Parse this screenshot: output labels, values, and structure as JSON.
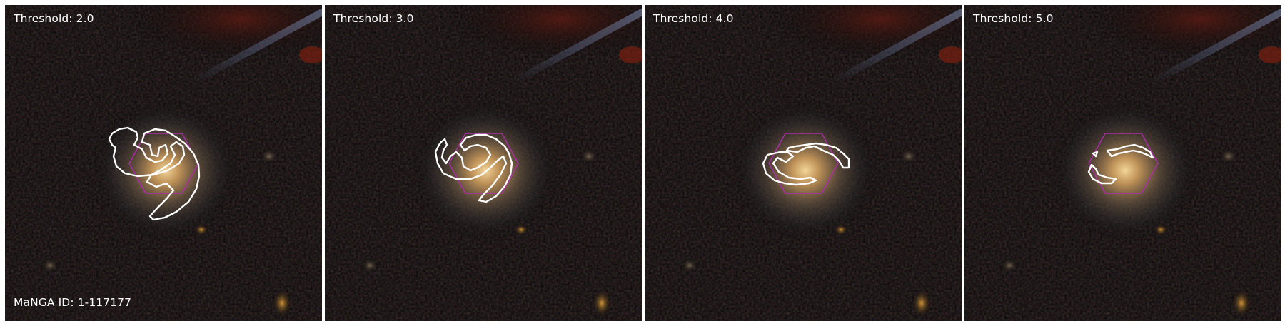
{
  "figure": {
    "panels": [
      {
        "threshold_label": "Threshold: 2.0",
        "threshold": 2.0
      },
      {
        "threshold_label": "Threshold: 3.0",
        "threshold": 3.0
      },
      {
        "threshold_label": "Threshold: 4.0",
        "threshold": 4.0
      },
      {
        "threshold_label": "Threshold: 5.0",
        "threshold": 5.0
      }
    ],
    "manga_id_label": "MaNGA ID: 1-117177",
    "colors": {
      "contour": "#ffffff",
      "ifu_hexagon": "#b02bb0",
      "background": "#060505",
      "galaxy_core": "#e6c58a"
    }
  }
}
